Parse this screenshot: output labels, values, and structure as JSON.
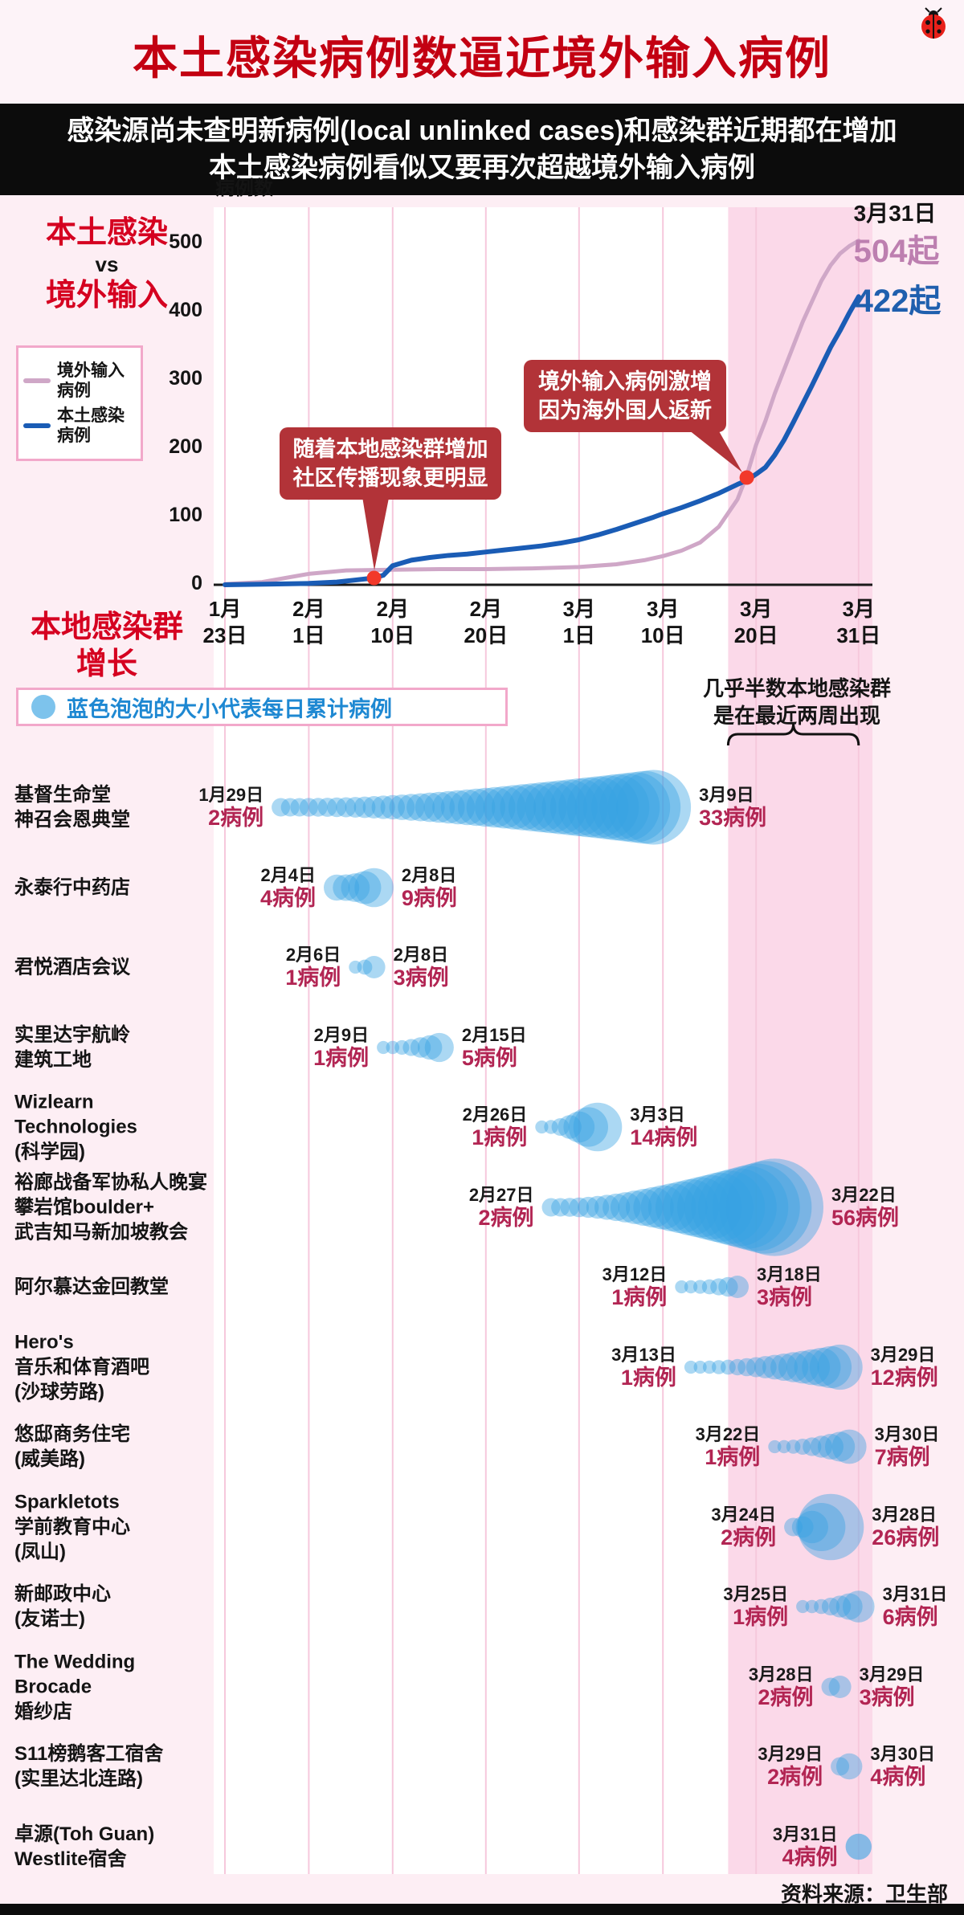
{
  "page": {
    "title": "本土感染病例数逼近境外输入病例",
    "subtitle_line1": "感染源尚未查明新病例(local unlinked cases)和感染群近期都在增加",
    "subtitle_line2": "本土感染病例看似又要再次超越境外输入病例",
    "source": "资料来源：卫生部"
  },
  "chart_section": {
    "label_line1": "本土感染",
    "label_vs": "vs",
    "label_line2": "境外输入",
    "y_axis_title": "病例数",
    "legend": [
      {
        "label_line1": "境外输入",
        "label_line2": "病例",
        "color": "#cfa7c7"
      },
      {
        "label_line1": "本土感染",
        "label_line2": "病例",
        "color": "#1a5cb5"
      }
    ],
    "annotation1": {
      "line1": "随着本地感染群增加",
      "line2": "社区传播现象更明显"
    },
    "annotation2": {
      "line1": "境外输入病例激增",
      "line2": "因为海外国人返新"
    },
    "end_date_label": "3月31日",
    "imported_end_label": "504起",
    "local_end_label": "422起"
  },
  "clusters_section": {
    "label_line1": "本地感染群",
    "label_line2": "增长",
    "legend_text": "蓝色泡泡的大小代表每日累计病例",
    "note_line1": "几乎半数本地感染群",
    "note_line2": "是在最近两周出现"
  },
  "chart_data": [
    {
      "type": "line",
      "title": "本土感染 vs 境外输入",
      "ylabel": "病例数",
      "ylim": [
        0,
        520
      ],
      "x_range": "1月23日 - 3月31日",
      "y_ticks": [
        500,
        400,
        300,
        200,
        100,
        0
      ],
      "x_ticks": [
        {
          "day": 0,
          "line1": "1月",
          "line2": "23日"
        },
        {
          "day": 9,
          "line1": "2月",
          "line2": "1日"
        },
        {
          "day": 18,
          "line1": "2月",
          "line2": "10日"
        },
        {
          "day": 28,
          "line1": "2月",
          "line2": "20日"
        },
        {
          "day": 38,
          "line1": "3月",
          "line2": "1日"
        },
        {
          "day": 47,
          "line1": "3月",
          "line2": "10日"
        },
        {
          "day": 57,
          "line1": "3月",
          "line2": "20日"
        },
        {
          "day": 68,
          "line1": "3月",
          "line2": "31日"
        }
      ],
      "band_start_day": 54,
      "series": [
        {
          "name": "境外输入病例",
          "color": "#cfa7c7",
          "width": 5,
          "final": 504,
          "points": [
            [
              0,
              1
            ],
            [
              4,
              4
            ],
            [
              9,
              16
            ],
            [
              13,
              21
            ],
            [
              18,
              22
            ],
            [
              23,
              23
            ],
            [
              28,
              23
            ],
            [
              33,
              24
            ],
            [
              38,
              26
            ],
            [
              42,
              30
            ],
            [
              45,
              36
            ],
            [
              47,
              42
            ],
            [
              49,
              50
            ],
            [
              51,
              62
            ],
            [
              53,
              85
            ],
            [
              55,
              125
            ],
            [
              56,
              160
            ],
            [
              57,
              205
            ],
            [
              58,
              240
            ],
            [
              59,
              280
            ],
            [
              60,
              315
            ],
            [
              61,
              350
            ],
            [
              62,
              385
            ],
            [
              63,
              415
            ],
            [
              64,
              445
            ],
            [
              65,
              468
            ],
            [
              66,
              485
            ],
            [
              67,
              496
            ],
            [
              68,
              504
            ]
          ]
        },
        {
          "name": "本土感染病例",
          "color": "#1a5cb5",
          "width": 6,
          "final": 422,
          "points": [
            [
              0,
              0
            ],
            [
              5,
              1
            ],
            [
              9,
              2
            ],
            [
              12,
              4
            ],
            [
              14,
              7
            ],
            [
              16,
              10
            ],
            [
              17,
              14
            ],
            [
              18,
              28
            ],
            [
              20,
              36
            ],
            [
              22,
              40
            ],
            [
              24,
              43
            ],
            [
              26,
              45
            ],
            [
              28,
              48
            ],
            [
              30,
              51
            ],
            [
              32,
              54
            ],
            [
              34,
              57
            ],
            [
              36,
              61
            ],
            [
              38,
              66
            ],
            [
              40,
              73
            ],
            [
              42,
              81
            ],
            [
              44,
              90
            ],
            [
              46,
              99
            ],
            [
              47,
              104
            ],
            [
              49,
              113
            ],
            [
              51,
              123
            ],
            [
              53,
              134
            ],
            [
              55,
              147
            ],
            [
              56,
              153
            ],
            [
              57,
              162
            ],
            [
              58,
              172
            ],
            [
              59,
              190
            ],
            [
              60,
              212
            ],
            [
              61,
              238
            ],
            [
              62,
              265
            ],
            [
              63,
              292
            ],
            [
              64,
              320
            ],
            [
              65,
              348
            ],
            [
              66,
              372
            ],
            [
              67,
              398
            ],
            [
              68,
              422
            ]
          ]
        }
      ],
      "markers": [
        {
          "day": 16,
          "value": 10
        },
        {
          "day": 56,
          "value": 157
        }
      ]
    },
    {
      "type": "bubble-timeline",
      "note": "泡泡大小代表每日累计病例，时间轴1月23日至3月31日",
      "clusters": [
        {
          "name_lines": [
            "基督生命堂",
            "神召会恩典堂"
          ],
          "start": {
            "date": "1月29日",
            "cases": 2,
            "label": "2病例",
            "day": 6
          },
          "end": {
            "date": "3月9日",
            "cases": 33,
            "label": "33病例",
            "day": 46
          }
        },
        {
          "name_lines": [
            "永泰行中药店"
          ],
          "start": {
            "date": "2月4日",
            "cases": 4,
            "label": "4病例",
            "day": 12
          },
          "end": {
            "date": "2月8日",
            "cases": 9,
            "label": "9病例",
            "day": 16
          }
        },
        {
          "name_lines": [
            "君悦酒店会议"
          ],
          "start": {
            "date": "2月6日",
            "cases": 1,
            "label": "1病例",
            "day": 14
          },
          "end": {
            "date": "2月8日",
            "cases": 3,
            "label": "3病例",
            "day": 16
          }
        },
        {
          "name_lines": [
            "实里达宇航岭",
            "建筑工地"
          ],
          "start": {
            "date": "2月9日",
            "cases": 1,
            "label": "1病例",
            "day": 17
          },
          "end": {
            "date": "2月15日",
            "cases": 5,
            "label": "5病例",
            "day": 23
          }
        },
        {
          "name_lines": [
            "Wizlearn Technologies",
            "(科学园)"
          ],
          "start": {
            "date": "2月26日",
            "cases": 1,
            "label": "1病例",
            "day": 34
          },
          "end": {
            "date": "3月3日",
            "cases": 14,
            "label": "14病例",
            "day": 40
          }
        },
        {
          "name_lines": [
            "裕廊战备军协私人晚宴",
            "攀岩馆boulder+",
            "武吉知马新加坡教会"
          ],
          "start": {
            "date": "2月27日",
            "cases": 2,
            "label": "2病例",
            "day": 35
          },
          "end": {
            "date": "3月22日",
            "cases": 56,
            "label": "56病例",
            "day": 59
          }
        },
        {
          "name_lines": [
            "阿尔慕达金回教堂"
          ],
          "start": {
            "date": "3月12日",
            "cases": 1,
            "label": "1病例",
            "day": 49
          },
          "end": {
            "date": "3月18日",
            "cases": 3,
            "label": "3病例",
            "day": 55
          }
        },
        {
          "name_lines": [
            "Hero's",
            "音乐和体育酒吧",
            "(沙球劳路)"
          ],
          "start": {
            "date": "3月13日",
            "cases": 1,
            "label": "1病例",
            "day": 50
          },
          "end": {
            "date": "3月29日",
            "cases": 12,
            "label": "12病例",
            "day": 66
          }
        },
        {
          "name_lines": [
            "悠邸商务住宅",
            "(威美路)"
          ],
          "start": {
            "date": "3月22日",
            "cases": 1,
            "label": "1病例",
            "day": 59
          },
          "end": {
            "date": "3月30日",
            "cases": 7,
            "label": "7病例",
            "day": 67
          }
        },
        {
          "name_lines": [
            "Sparkletots",
            "学前教育中心",
            "(凤山)"
          ],
          "start": {
            "date": "3月24日",
            "cases": 2,
            "label": "2病例",
            "day": 61
          },
          "end": {
            "date": "3月28日",
            "cases": 26,
            "label": "26病例",
            "day": 65
          }
        },
        {
          "name_lines": [
            "新邮政中心",
            "(友诺士)"
          ],
          "start": {
            "date": "3月25日",
            "cases": 1,
            "label": "1病例",
            "day": 62
          },
          "end": {
            "date": "3月31日",
            "cases": 6,
            "label": "6病例",
            "day": 68
          }
        },
        {
          "name_lines": [
            "The Wedding Brocade",
            "婚纱店"
          ],
          "start": {
            "date": "3月28日",
            "cases": 2,
            "label": "2病例",
            "day": 65
          },
          "end": {
            "date": "3月29日",
            "cases": 3,
            "label": "3病例",
            "day": 66
          }
        },
        {
          "name_lines": [
            "S11榜鹅客工宿舍",
            "(实里达北连路)"
          ],
          "start": {
            "date": "3月29日",
            "cases": 2,
            "label": "2病例",
            "day": 66
          },
          "end": {
            "date": "3月30日",
            "cases": 4,
            "label": "4病例",
            "day": 67
          }
        },
        {
          "name_lines": [
            "卓源(Toh Guan)",
            "Westlite宿舍"
          ],
          "start": {
            "date": "3月31日",
            "cases": 4,
            "label": "4病例",
            "day": 68
          },
          "end": null
        }
      ]
    }
  ],
  "colors": {
    "title_red": "#c30012",
    "imported_line": "#cfa7c7",
    "local_line": "#1a5cb5",
    "bubble_blue": "#38a3e2",
    "band_pink": "#fbd9e9",
    "annotation_red": "#b23338",
    "marker_red": "#f2392a",
    "count_crimson": "#b22553"
  }
}
